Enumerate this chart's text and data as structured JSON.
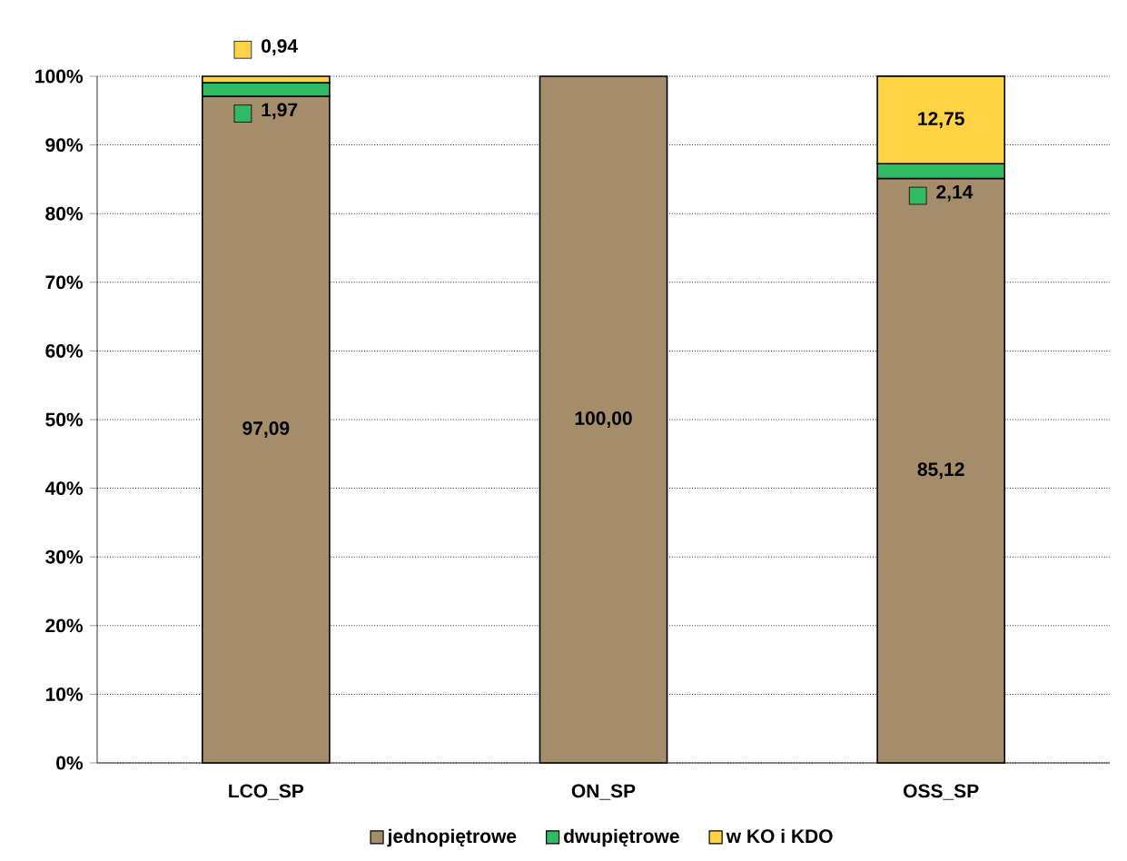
{
  "chart_data": {
    "type": "bar",
    "stacked": true,
    "categories": [
      "LCO_SP",
      "ON_SP",
      "OSS_SP"
    ],
    "series": [
      {
        "name": "jednopiętrowe",
        "color": "#a58d6b",
        "values": [
          97.09,
          100.0,
          85.12
        ],
        "value_labels": [
          "97,09",
          "100,00",
          "85,12"
        ]
      },
      {
        "name": "dwupiętrowe",
        "color": "#2fba63",
        "values": [
          1.97,
          null,
          2.14
        ],
        "value_labels": [
          "1,97",
          null,
          "2,14"
        ]
      },
      {
        "name": "w KO i KDO",
        "color": "#ffd343",
        "values": [
          0.94,
          null,
          12.75
        ],
        "value_labels": [
          "0,94",
          null,
          "12,75"
        ]
      }
    ],
    "ylim": [
      0,
      100
    ],
    "yticks": [
      {
        "value": 0,
        "label": "0%"
      },
      {
        "value": 10,
        "label": "10%"
      },
      {
        "value": 20,
        "label": "20%"
      },
      {
        "value": 30,
        "label": "30%"
      },
      {
        "value": 40,
        "label": "40%"
      },
      {
        "value": 50,
        "label": "50%"
      },
      {
        "value": 60,
        "label": "60%"
      },
      {
        "value": 70,
        "label": "70%"
      },
      {
        "value": 80,
        "label": "80%"
      },
      {
        "value": 90,
        "label": "90%"
      },
      {
        "value": 100,
        "label": "100%"
      }
    ],
    "grid": "y",
    "legend": "bottom"
  }
}
